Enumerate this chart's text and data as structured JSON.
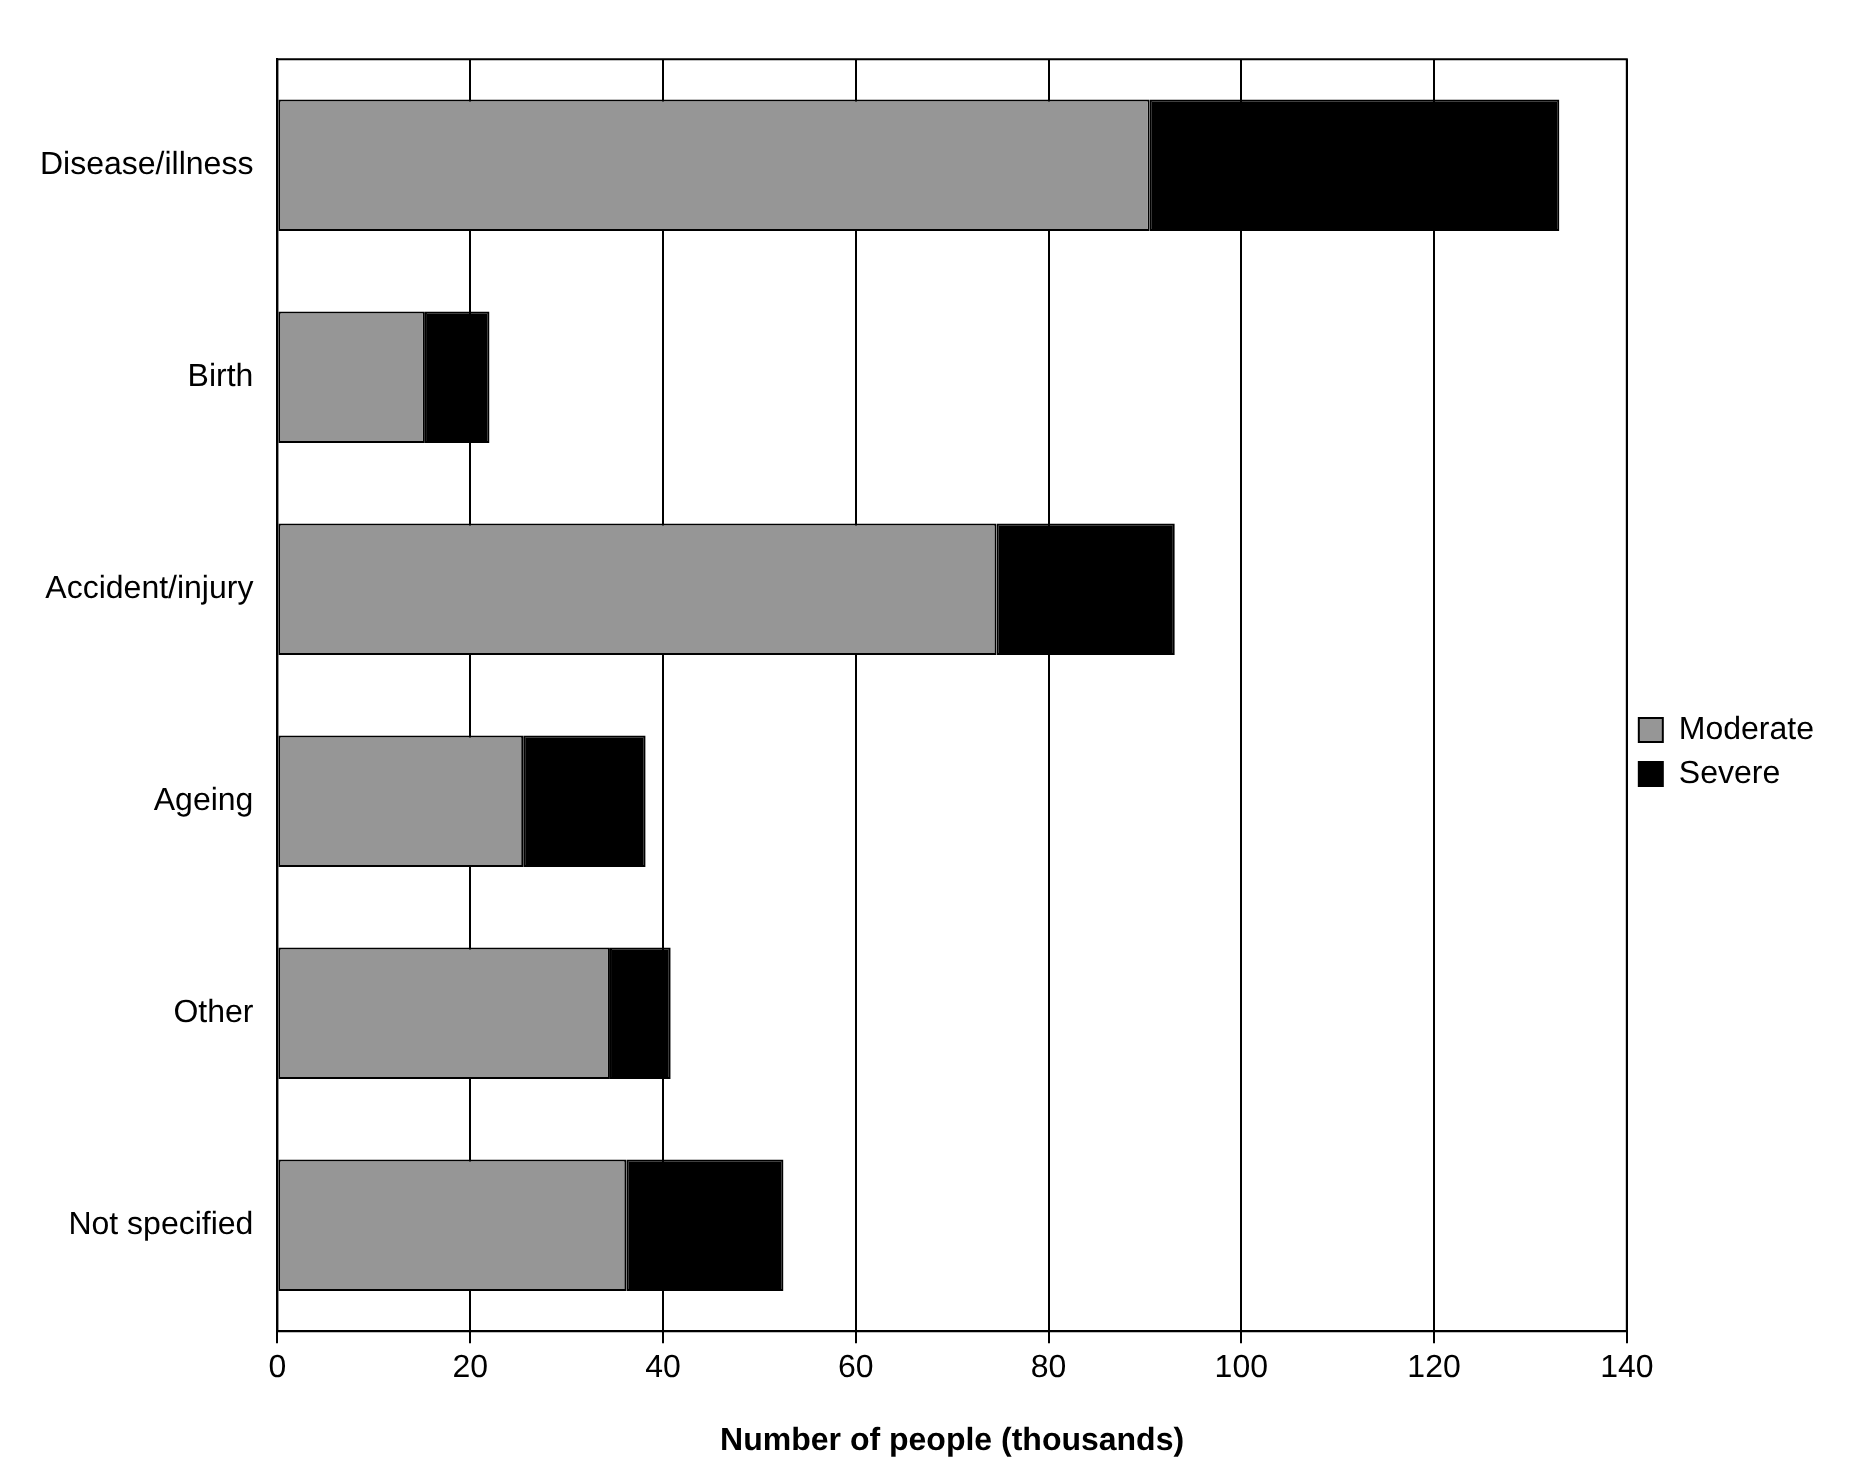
{
  "chart_data": {
    "type": "bar",
    "orientation": "horizontal",
    "stacked": true,
    "xlabel": "Number of people (thousands)",
    "categories": [
      "Disease/illness",
      "Birth",
      "Accident/injury",
      "Ageing",
      "Other",
      "Not specified"
    ],
    "series": [
      {
        "name": "Moderate",
        "color": "#969696",
        "values": [
          90.5,
          15.3,
          74.6,
          25.5,
          34.5,
          36.2
        ]
      },
      {
        "name": "Severe",
        "color": "#000000",
        "values": [
          42.5,
          6.7,
          18.5,
          12.7,
          6.3,
          16.3
        ]
      }
    ],
    "xlim": [
      0,
      140
    ],
    "xticks": [
      0,
      20,
      40,
      60,
      80,
      100,
      120,
      140
    ],
    "grid": "x",
    "legend": "right"
  }
}
